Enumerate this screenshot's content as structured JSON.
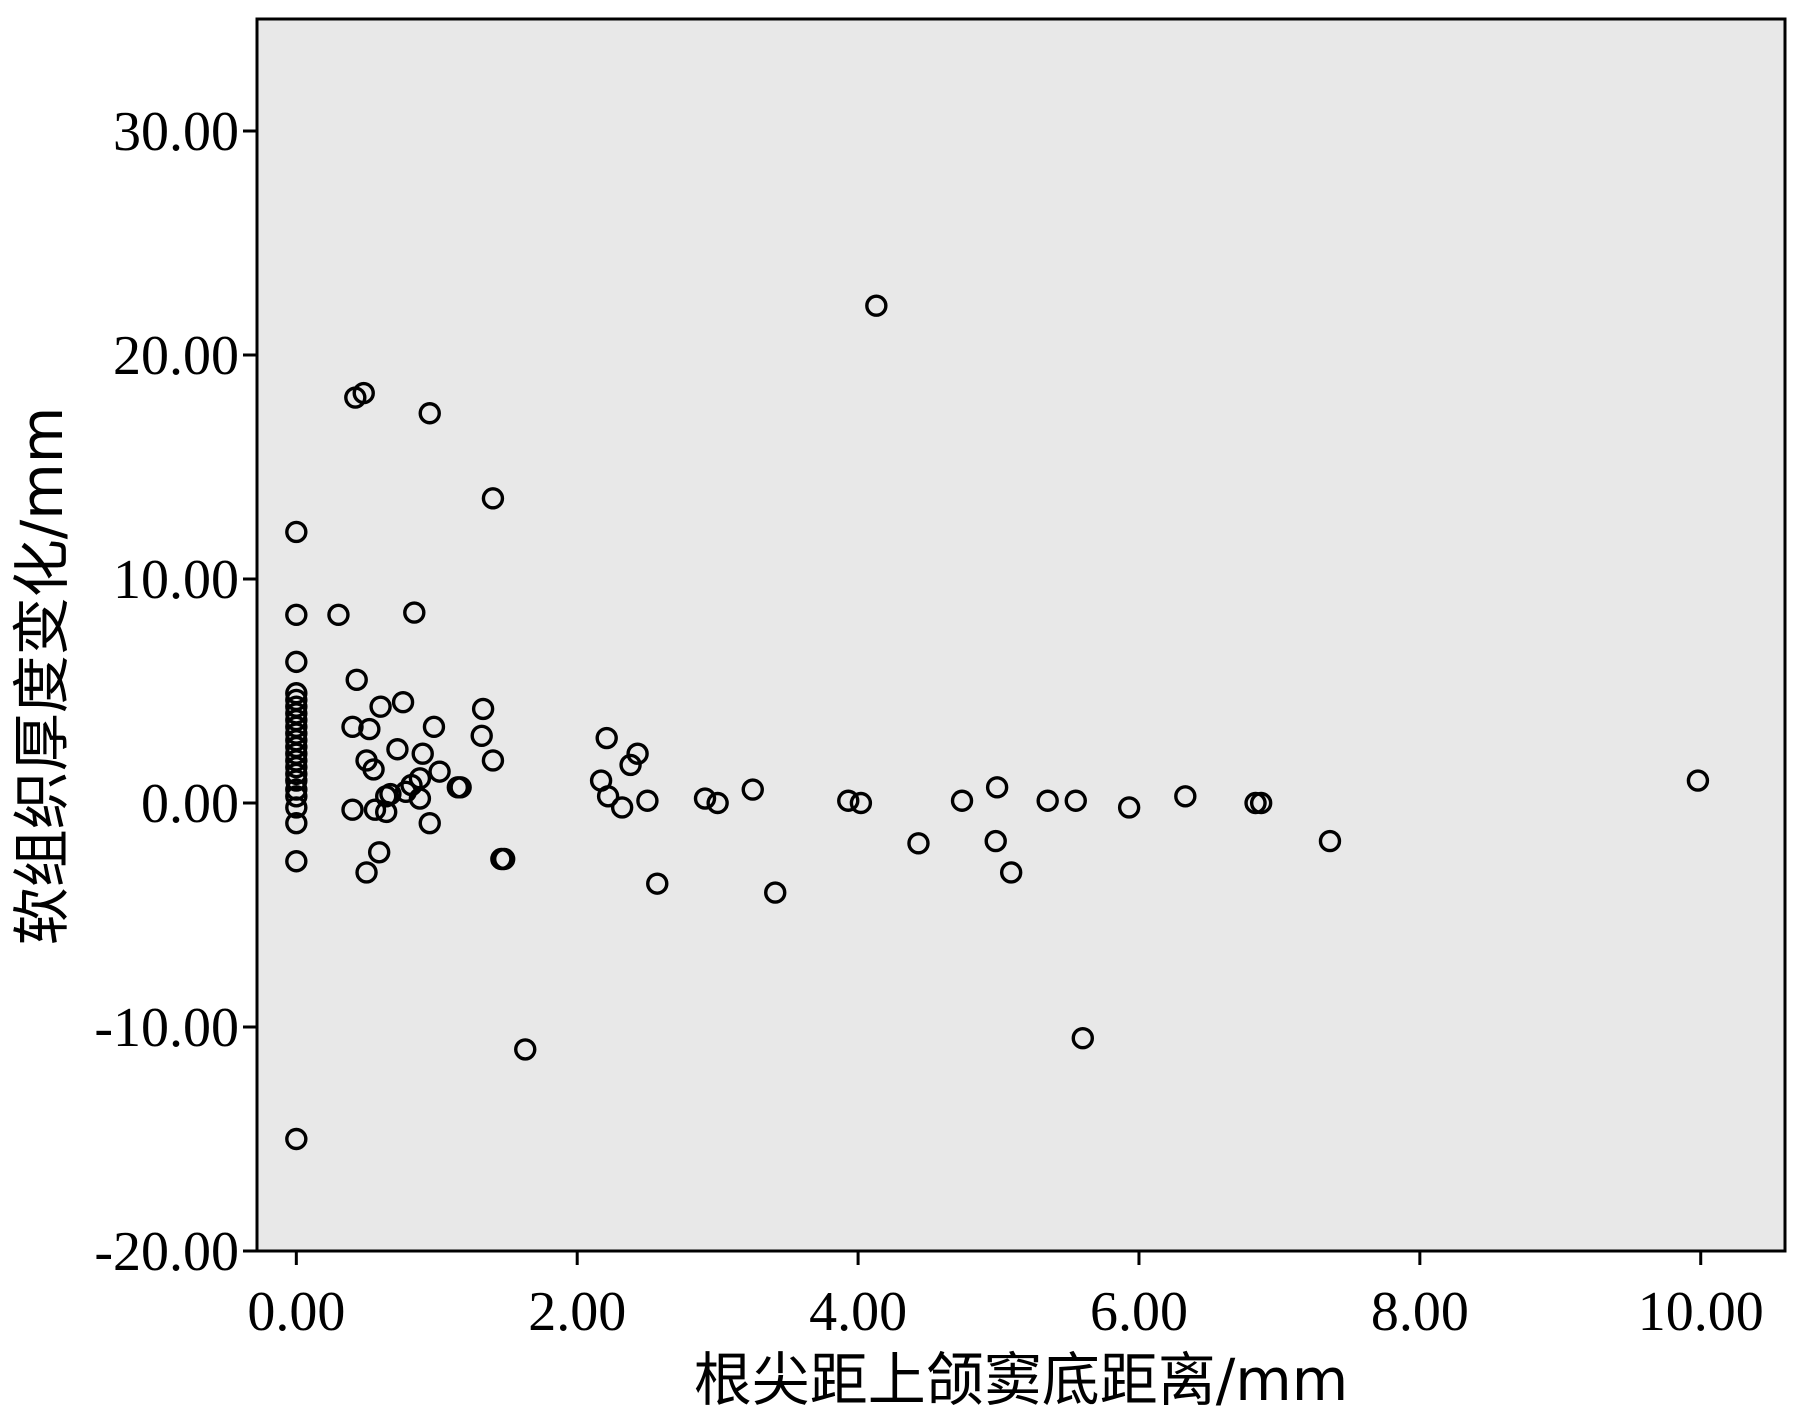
{
  "chart_data": {
    "type": "scatter",
    "xlabel": "根尖距上颌窦底距离/mm",
    "ylabel": "软组织厚度变化/mm",
    "xlim": [
      -0.28,
      10.6
    ],
    "ylim": [
      -20,
      35
    ],
    "x_ticks": [
      "0.00",
      "2.00",
      "4.00",
      "6.00",
      "8.00",
      "10.00"
    ],
    "x_tick_values": [
      0,
      2,
      4,
      6,
      8,
      10
    ],
    "y_ticks": [
      "30.00",
      "20.00",
      "10.00",
      "0.00",
      "-10.00",
      "-20.00"
    ],
    "y_tick_values": [
      30,
      20,
      10,
      0,
      -10,
      -20
    ],
    "grid": false,
    "colors": {
      "plot_background": "#e8e8e8",
      "marker": "#000000"
    },
    "points": [
      [
        0,
        12.1
      ],
      [
        0,
        8.4
      ],
      [
        0,
        6.3
      ],
      [
        0,
        4.9
      ],
      [
        0,
        4.6
      ],
      [
        0,
        4.3
      ],
      [
        0,
        4.0
      ],
      [
        0,
        3.7
      ],
      [
        0,
        3.4
      ],
      [
        0,
        3.1
      ],
      [
        0,
        2.8
      ],
      [
        0,
        2.5
      ],
      [
        0,
        2.2
      ],
      [
        0,
        1.9
      ],
      [
        0,
        1.6
      ],
      [
        0,
        1.3
      ],
      [
        0,
        1.0
      ],
      [
        0,
        0.6
      ],
      [
        0,
        0.3
      ],
      [
        0,
        -0.2
      ],
      [
        0,
        -0.9
      ],
      [
        0,
        -2.6
      ],
      [
        0,
        -15.0
      ],
      [
        0.3,
        8.4
      ],
      [
        0.42,
        18.1
      ],
      [
        0.48,
        18.3
      ],
      [
        0.95,
        17.4
      ],
      [
        1.4,
        13.6
      ],
      [
        0.84,
        8.5
      ],
      [
        0.43,
        5.5
      ],
      [
        0.76,
        4.5
      ],
      [
        1.33,
        4.2
      ],
      [
        0.6,
        4.3
      ],
      [
        0.4,
        3.4
      ],
      [
        0.52,
        3.3
      ],
      [
        0.98,
        3.4
      ],
      [
        1.32,
        3.0
      ],
      [
        0.72,
        2.4
      ],
      [
        0.9,
        2.2
      ],
      [
        0.5,
        1.9
      ],
      [
        1.4,
        1.9
      ],
      [
        0.55,
        1.5
      ],
      [
        1.02,
        1.4
      ],
      [
        0.88,
        1.1
      ],
      [
        0.82,
        0.8
      ],
      [
        1.15,
        0.7
      ],
      [
        1.17,
        0.7
      ],
      [
        0.78,
        0.5
      ],
      [
        0.67,
        0.4
      ],
      [
        0.64,
        0.3
      ],
      [
        0.88,
        0.2
      ],
      [
        0.4,
        -0.3
      ],
      [
        0.56,
        -0.3
      ],
      [
        0.64,
        -0.4
      ],
      [
        0.95,
        -0.9
      ],
      [
        0.59,
        -2.2
      ],
      [
        0.5,
        -3.1
      ],
      [
        1.48,
        -2.5
      ],
      [
        1.46,
        -2.5
      ],
      [
        1.63,
        -11.0
      ],
      [
        2.21,
        2.9
      ],
      [
        2.43,
        2.2
      ],
      [
        2.38,
        1.7
      ],
      [
        2.17,
        1.0
      ],
      [
        2.22,
        0.3
      ],
      [
        2.5,
        0.1
      ],
      [
        2.32,
        -0.2
      ],
      [
        2.57,
        -3.6
      ],
      [
        2.91,
        0.2
      ],
      [
        3.0,
        0.0
      ],
      [
        3.25,
        0.6
      ],
      [
        3.41,
        -4.0
      ],
      [
        3.93,
        0.1
      ],
      [
        4.02,
        0.0
      ],
      [
        4.13,
        22.2
      ],
      [
        4.43,
        -1.8
      ],
      [
        4.74,
        0.1
      ],
      [
        4.99,
        0.7
      ],
      [
        4.98,
        -1.7
      ],
      [
        5.09,
        -3.1
      ],
      [
        5.35,
        0.1
      ],
      [
        5.55,
        0.1
      ],
      [
        5.6,
        -10.5
      ],
      [
        5.93,
        -0.2
      ],
      [
        6.33,
        0.3
      ],
      [
        6.83,
        0.0
      ],
      [
        6.87,
        0.0
      ],
      [
        7.36,
        -1.7
      ],
      [
        9.98,
        1.0
      ]
    ]
  }
}
